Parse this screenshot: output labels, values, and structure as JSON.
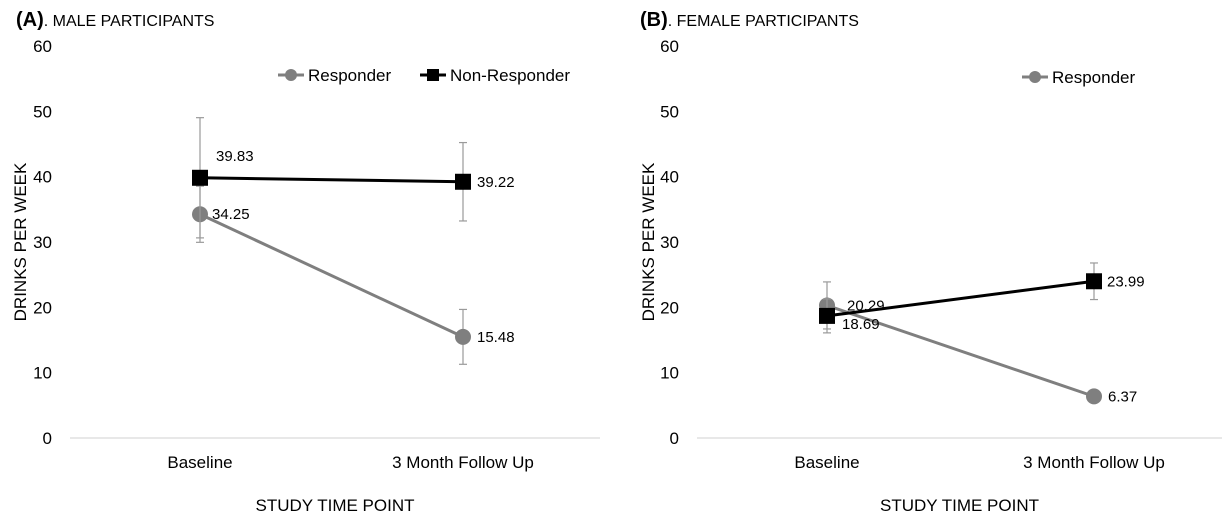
{
  "chart_data": [
    {
      "type": "line",
      "panel_tag": "(A)",
      "title": ". MALE PARTICIPANTS",
      "xlabel": "STUDY TIME POINT",
      "ylabel": "DRINKS PER WEEK",
      "categories": [
        "Baseline",
        "3 Month Follow Up"
      ],
      "ylim": [
        0,
        60
      ],
      "yticks": [
        0,
        10,
        20,
        30,
        40,
        50,
        60
      ],
      "grid": false,
      "legend": "top-right",
      "series": [
        {
          "name": "Responder",
          "values": [
            34.25,
            15.48
          ],
          "labels": [
            "34.25",
            "15.48"
          ],
          "err": [
            4.3,
            4.2
          ],
          "color": "#7f7f7f",
          "marker": "circle",
          "show_legend": true
        },
        {
          "name": "Non-Responder",
          "values": [
            39.83,
            39.22
          ],
          "labels": [
            "39.83",
            "39.22"
          ],
          "err": [
            9.2,
            6.0
          ],
          "color": "#000000",
          "marker": "square",
          "show_legend": true
        }
      ]
    },
    {
      "type": "line",
      "panel_tag": "(B)",
      "title": ". FEMALE PARTICIPANTS",
      "xlabel": "STUDY TIME POINT",
      "ylabel": "DRINKS PER WEEK",
      "categories": [
        "Baseline",
        "3 Month Follow Up"
      ],
      "ylim": [
        0,
        60
      ],
      "yticks": [
        0,
        10,
        20,
        30,
        40,
        50,
        60
      ],
      "grid": false,
      "legend": "top-right",
      "series": [
        {
          "name": "Responder",
          "values": [
            20.29,
            6.37
          ],
          "labels": [
            "20.29",
            "6.37"
          ],
          "err": [
            3.6,
            0.7
          ],
          "color": "#7f7f7f",
          "marker": "circle",
          "show_legend": true
        },
        {
          "name": "",
          "values": [
            18.69,
            23.99
          ],
          "labels": [
            "18.69",
            "23.99"
          ],
          "err": [
            2.6,
            2.8
          ],
          "color": "#000000",
          "marker": "square",
          "show_legend": false
        }
      ]
    }
  ]
}
